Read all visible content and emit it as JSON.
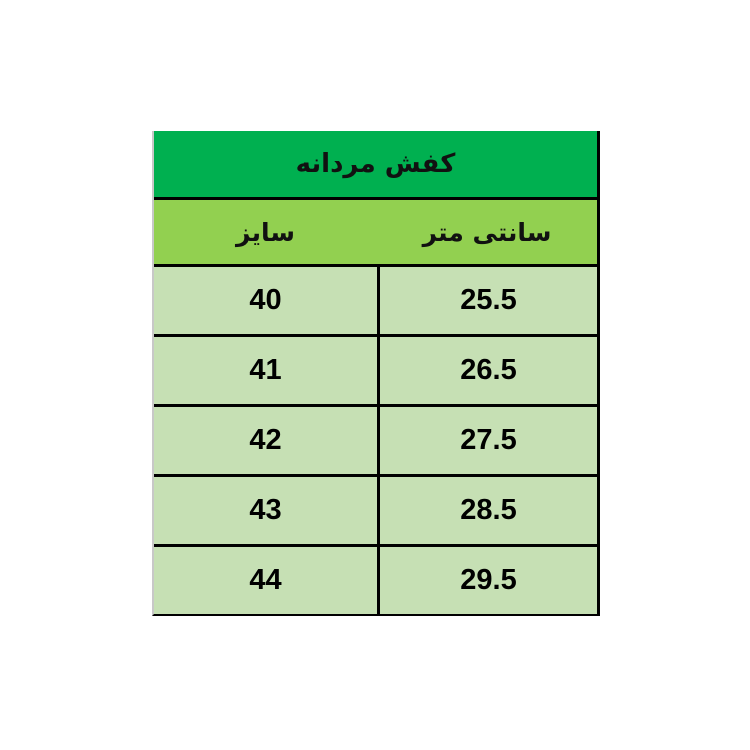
{
  "table": {
    "title": "کفش مردانه",
    "headers": {
      "cm": "سانتی متر",
      "size": "سایز"
    },
    "rows": [
      {
        "size": "40",
        "cm": "25.5"
      },
      {
        "size": "41",
        "cm": "26.5"
      },
      {
        "size": "42",
        "cm": "27.5"
      },
      {
        "size": "43",
        "cm": "28.5"
      },
      {
        "size": "44",
        "cm": "29.5"
      }
    ],
    "colors": {
      "title_bg": "#00b050",
      "header_bg": "#92d050",
      "row_bg": "#c6e0b4"
    }
  }
}
